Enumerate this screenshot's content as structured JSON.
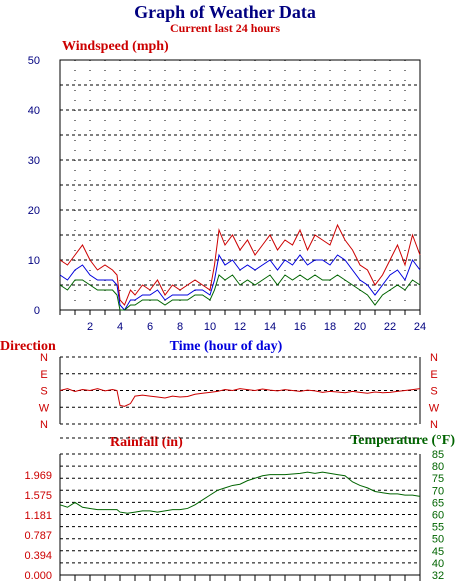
{
  "header": {
    "title": "Graph of Weather Data",
    "subtitle": "Current last 24 hours"
  },
  "colors": {
    "navy": "#000080",
    "red": "#cc0000",
    "blue": "#0000dd",
    "green": "#006400",
    "grid": "#000000"
  },
  "chart_data": [
    {
      "type": "line",
      "title": "Windspeed (mph)",
      "xlabel": "Time (hour of day)",
      "ylabel": "Windspeed (mph)",
      "xlim": [
        0,
        24
      ],
      "ylim": [
        0,
        50
      ],
      "x_ticks": [
        2,
        4,
        6,
        8,
        10,
        12,
        14,
        16,
        18,
        20,
        22,
        24
      ],
      "y_ticks": [
        0,
        10,
        20,
        30,
        40,
        50
      ],
      "grid": true,
      "x": [
        0,
        0.5,
        1,
        1.5,
        2,
        2.5,
        3,
        3.5,
        3.8,
        4,
        4.3,
        4.7,
        5,
        5.5,
        6,
        6.5,
        7,
        7.5,
        8,
        8.5,
        9,
        9.5,
        10,
        10.3,
        10.6,
        11,
        11.5,
        12,
        12.5,
        13,
        13.5,
        14,
        14.5,
        15,
        15.5,
        16,
        16.5,
        17,
        17.5,
        18,
        18.5,
        19,
        19.5,
        20,
        20.5,
        21,
        21.5,
        22,
        22.5,
        23,
        23.5,
        24
      ],
      "series": [
        {
          "color": "#cc0000",
          "values": [
            10,
            9,
            11,
            13,
            10,
            8,
            9,
            8,
            7,
            2,
            1,
            4,
            3,
            5,
            4,
            6,
            3,
            5,
            4,
            5,
            6,
            5,
            4,
            9,
            16,
            13,
            15,
            12,
            14,
            11,
            13,
            15,
            12,
            14,
            13,
            16,
            12,
            15,
            14,
            13,
            17,
            14,
            12,
            9,
            8,
            5,
            7,
            10,
            13,
            9,
            15,
            11
          ]
        },
        {
          "color": "#0000dd",
          "values": [
            7,
            6,
            8,
            9,
            7,
            6,
            6,
            6,
            5,
            1,
            0,
            2,
            2,
            3,
            3,
            4,
            2,
            3,
            3,
            3,
            4,
            4,
            3,
            6,
            11,
            9,
            10,
            8,
            9,
            8,
            9,
            10,
            8,
            10,
            9,
            11,
            9,
            10,
            10,
            9,
            11,
            10,
            8,
            6,
            5,
            3,
            5,
            7,
            8,
            6,
            10,
            8
          ]
        },
        {
          "color": "#006400",
          "values": [
            5,
            4,
            6,
            6,
            5,
            4,
            4,
            4,
            3,
            0,
            0,
            1,
            1,
            2,
            2,
            2,
            1,
            2,
            2,
            2,
            3,
            3,
            2,
            4,
            7,
            6,
            7,
            5,
            6,
            5,
            6,
            7,
            5,
            7,
            6,
            7,
            6,
            7,
            6,
            6,
            7,
            6,
            5,
            4,
            3,
            1,
            3,
            4,
            5,
            4,
            6,
            5
          ]
        }
      ]
    },
    {
      "type": "line",
      "title": "Direction",
      "xlim": [
        0,
        24
      ],
      "y_categories": [
        "N",
        "W",
        "S",
        "E",
        "N"
      ],
      "grid": true,
      "x": [
        0,
        0.5,
        1,
        1.5,
        2,
        2.5,
        3,
        3.5,
        3.8,
        4,
        4.3,
        4.7,
        5,
        5.5,
        6,
        6.5,
        7,
        7.5,
        8,
        8.5,
        9,
        9.5,
        10,
        10.5,
        11,
        11.5,
        12,
        12.5,
        13,
        13.5,
        14,
        14.5,
        15,
        15.5,
        16,
        16.5,
        17,
        17.5,
        18,
        18.5,
        19,
        19.5,
        20,
        20.5,
        21,
        21.5,
        22,
        22.5,
        23,
        23.5,
        24
      ],
      "series": [
        {
          "color": "#cc0000",
          "values": [
            180,
            190,
            175,
            185,
            180,
            190,
            178,
            185,
            180,
            100,
            95,
            110,
            150,
            155,
            150,
            145,
            140,
            150,
            145,
            148,
            160,
            165,
            170,
            175,
            185,
            180,
            190,
            185,
            180,
            188,
            182,
            178,
            185,
            180,
            175,
            182,
            178,
            170,
            175,
            172,
            168,
            175,
            170,
            165,
            172,
            168,
            170,
            175,
            180,
            185,
            190
          ]
        }
      ]
    },
    {
      "type": "line",
      "title": "Rainfall (in)",
      "xlim": [
        0,
        24
      ],
      "ylim": [
        0,
        2.362
      ],
      "y_ticks": [
        "0.000",
        "0.394",
        "0.787",
        "1.181",
        "1.575",
        "1.969"
      ],
      "grid": true,
      "series": [
        {
          "name": "Rainfall (in)",
          "color": "#cc0000",
          "values": []
        }
      ]
    },
    {
      "type": "line",
      "title": "Temperature (°F)",
      "xlim": [
        0,
        24
      ],
      "ylim": [
        32,
        85
      ],
      "y_ticks": [
        32,
        40,
        45,
        50,
        55,
        60,
        65,
        70,
        75,
        80,
        85
      ],
      "x": [
        0,
        0.5,
        1,
        1.5,
        2,
        2.5,
        3,
        3.5,
        3.8,
        4,
        4.5,
        5,
        5.5,
        6,
        6.5,
        7,
        7.5,
        8,
        8.5,
        9,
        9.5,
        10,
        10.5,
        11,
        11.5,
        12,
        12.5,
        13,
        13.5,
        14,
        15,
        16,
        16.5,
        17,
        17.5,
        18,
        18.5,
        19,
        19.5,
        20,
        20.5,
        21,
        21.5,
        22,
        22.5,
        23,
        23.5,
        24
      ],
      "series": [
        {
          "name": "Temperature (°F)",
          "color": "#006400",
          "values": [
            64,
            63,
            65,
            63,
            62.5,
            62,
            62,
            62,
            62,
            61,
            60.5,
            61,
            61.5,
            61.5,
            61,
            61.5,
            62,
            62,
            62.5,
            64,
            66,
            68,
            70,
            71,
            72,
            72.5,
            74,
            75,
            76,
            76.5,
            76.5,
            77,
            77.5,
            77,
            77.5,
            77,
            76.5,
            76,
            73.5,
            72,
            71,
            69.5,
            69,
            68.5,
            68.5,
            68,
            68,
            67.5
          ]
        }
      ]
    }
  ]
}
